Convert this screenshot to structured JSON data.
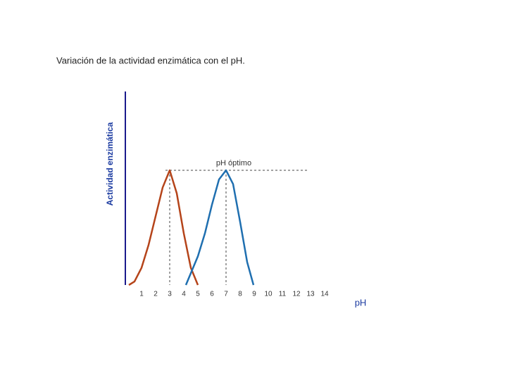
{
  "chart_data": {
    "type": "line",
    "title": "Variación de la actividad enzimática con el pH.",
    "ylabel": "Actividad enzimática",
    "xlabel": "pH",
    "annotation": "pH óptimo",
    "series": [
      {
        "color": "#b5441a",
        "x": [
          0.1,
          0.5,
          1,
          1.5,
          2,
          2.5,
          3,
          3.5,
          4,
          4.5,
          5
        ],
        "values": [
          0,
          3,
          15,
          35,
          60,
          85,
          100,
          80,
          45,
          15,
          0
        ]
      },
      {
        "color": "#1f6fb0",
        "x": [
          4.15,
          5,
          5.5,
          6,
          6.5,
          7,
          7.5,
          8,
          8.5,
          8.95
        ],
        "values": [
          0,
          25,
          45,
          70,
          92,
          100,
          88,
          55,
          20,
          0
        ]
      }
    ],
    "xlim": [
      0,
      14.5
    ],
    "ylim": [
      0,
      100
    ],
    "xticks": [
      1,
      2,
      3,
      4,
      5,
      6,
      7,
      8,
      9,
      10,
      11,
      12,
      13,
      14
    ]
  }
}
